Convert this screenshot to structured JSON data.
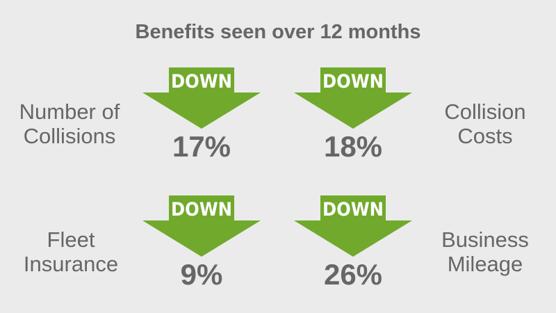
{
  "header": {
    "title": "Benefits seen over 12 months"
  },
  "items": [
    {
      "label": [
        "Number of",
        "Collisions"
      ],
      "badge": "DOWN",
      "value": "17%"
    },
    {
      "label": [
        "Collision",
        "Costs"
      ],
      "badge": "DOWN",
      "value": "18%"
    },
    {
      "label": [
        "Fleet",
        "Insurance"
      ],
      "badge": "DOWN",
      "value": "9%"
    },
    {
      "label": [
        "Business",
        "Mileage"
      ],
      "badge": "DOWN",
      "value": "26%"
    }
  ]
}
